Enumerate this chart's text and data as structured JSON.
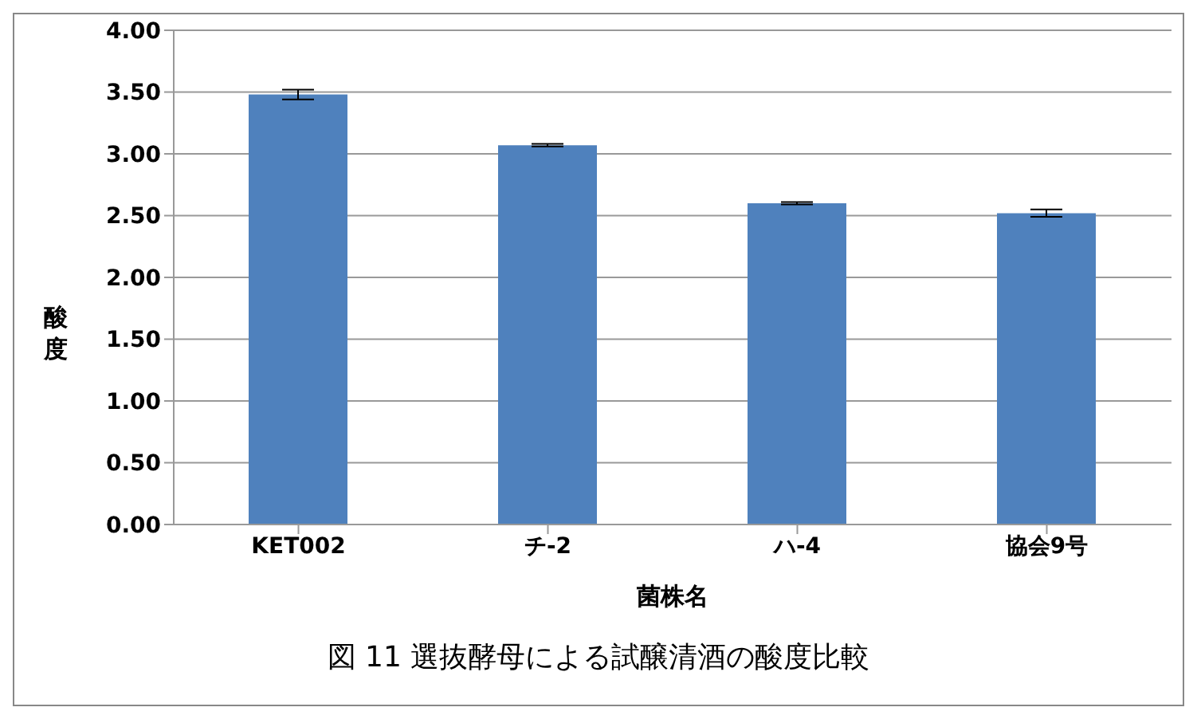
{
  "chart_data": {
    "type": "bar",
    "title": "図 11 選抜酵母による試醸清酒の酸度比較",
    "xlabel": "菌株名",
    "ylabel": "酸度",
    "categories": [
      "KET002",
      "チ-2",
      "ハ-4",
      "協会9号"
    ],
    "values": [
      3.48,
      3.07,
      2.6,
      2.52
    ],
    "errors": [
      0.04,
      0.01,
      0.01,
      0.03
    ],
    "color": "#4f81bd",
    "ylim": [
      0,
      4
    ],
    "yticks": [
      {
        "value": 0,
        "label": "0.00"
      },
      {
        "value": 0.5,
        "label": "0.50"
      },
      {
        "value": 1,
        "label": "1.00"
      },
      {
        "value": 1.5,
        "label": "1.50"
      },
      {
        "value": 2,
        "label": "2.00"
      },
      {
        "value": 2.5,
        "label": "2.50"
      },
      {
        "value": 3,
        "label": "3.00"
      },
      {
        "value": 3.5,
        "label": "3.50"
      },
      {
        "value": 4,
        "label": "4.00"
      }
    ],
    "grid": "y",
    "legend": false
  }
}
